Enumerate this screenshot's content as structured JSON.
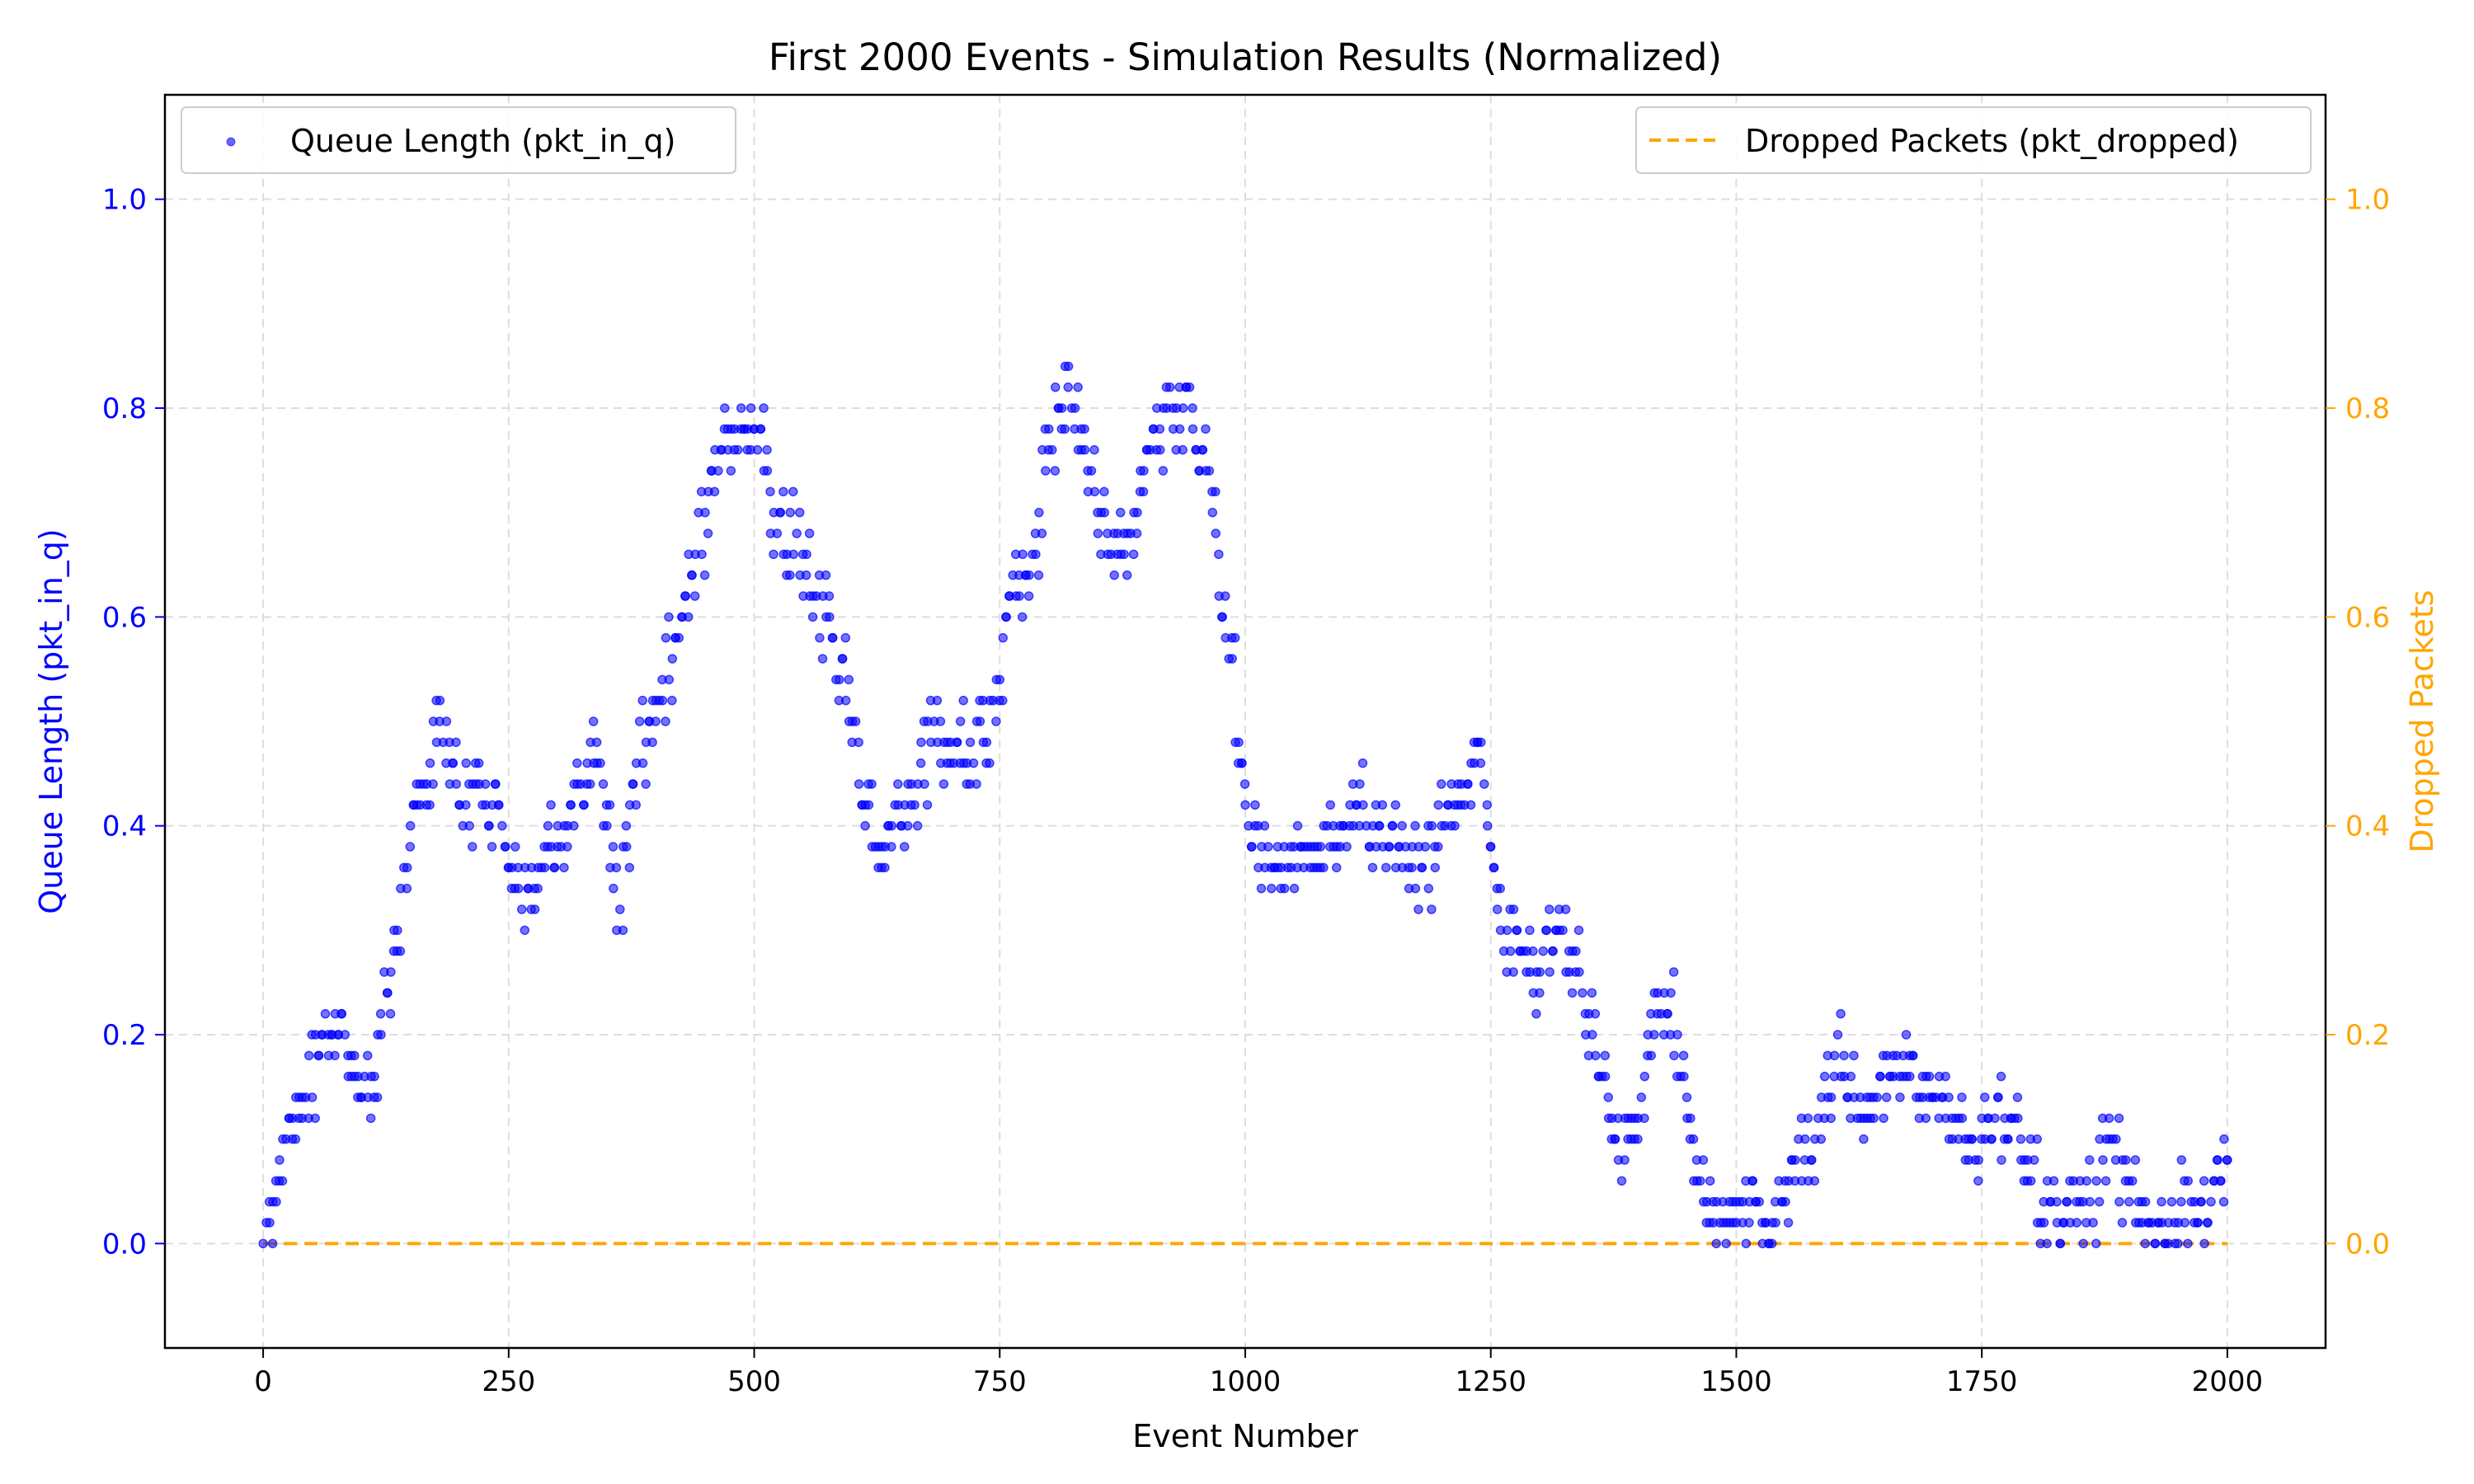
{
  "chart_data": {
    "type": "scatter",
    "title": "First 2000 Events - Simulation Results (Normalized)",
    "xlabel": "Event Number",
    "ylabel_left": "Queue Length (pkt_in_q)",
    "ylabel_right": "Dropped Packets",
    "xlim": [
      -100,
      2100
    ],
    "ylim": [
      -0.1,
      1.1
    ],
    "xticks": [
      0,
      250,
      500,
      750,
      1000,
      1250,
      1500,
      1750,
      2000
    ],
    "yticks": [
      0.0,
      0.2,
      0.4,
      0.6,
      0.8,
      1.0
    ],
    "grid": true,
    "colors": {
      "queue": "#0000ff",
      "dropped": "#ffa500"
    },
    "series": [
      {
        "name": "Queue Length (pkt_in_q)",
        "kind": "scatter",
        "axis": "left",
        "legend_position": "top-left",
        "x": [
          0,
          20,
          40,
          60,
          80,
          100,
          120,
          140,
          160,
          180,
          200,
          220,
          240,
          260,
          280,
          300,
          320,
          340,
          360,
          380,
          400,
          420,
          440,
          460,
          480,
          500,
          520,
          540,
          560,
          580,
          600,
          620,
          640,
          660,
          680,
          700,
          720,
          740,
          760,
          780,
          800,
          820,
          840,
          860,
          880,
          900,
          920,
          940,
          960,
          980,
          1000,
          1020,
          1040,
          1060,
          1080,
          1100,
          1120,
          1140,
          1160,
          1180,
          1200,
          1220,
          1240,
          1260,
          1280,
          1300,
          1320,
          1340,
          1360,
          1380,
          1400,
          1420,
          1440,
          1460,
          1480,
          1500,
          1520,
          1540,
          1560,
          1580,
          1600,
          1620,
          1640,
          1660,
          1680,
          1700,
          1720,
          1740,
          1760,
          1780,
          1800,
          1820,
          1840,
          1860,
          1880,
          1900,
          1920,
          1940,
          1960,
          1980,
          2000
        ],
        "y": [
          0.0,
          0.1,
          0.14,
          0.2,
          0.22,
          0.14,
          0.2,
          0.34,
          0.42,
          0.52,
          0.42,
          0.44,
          0.42,
          0.34,
          0.36,
          0.4,
          0.44,
          0.46,
          0.3,
          0.46,
          0.52,
          0.58,
          0.66,
          0.76,
          0.78,
          0.78,
          0.7,
          0.66,
          0.62,
          0.58,
          0.5,
          0.38,
          0.4,
          0.44,
          0.48,
          0.48,
          0.48,
          0.52,
          0.62,
          0.64,
          0.78,
          0.84,
          0.72,
          0.66,
          0.68,
          0.76,
          0.8,
          0.82,
          0.74,
          0.58,
          0.42,
          0.36,
          0.34,
          0.38,
          0.4,
          0.4,
          0.42,
          0.38,
          0.36,
          0.36,
          0.4,
          0.44,
          0.48,
          0.3,
          0.28,
          0.26,
          0.3,
          0.26,
          0.16,
          0.08,
          0.12,
          0.24,
          0.2,
          0.06,
          0.04,
          0.02,
          0.04,
          0.02,
          0.08,
          0.1,
          0.18,
          0.14,
          0.12,
          0.16,
          0.18,
          0.14,
          0.1,
          0.1,
          0.1,
          0.12,
          0.06,
          0.04,
          0.02,
          0.04,
          0.1,
          0.04,
          0.02,
          0.02,
          0.06,
          0.02,
          0.08
        ]
      },
      {
        "name": "Dropped Packets (pkt_dropped)",
        "kind": "dashed-line",
        "axis": "right",
        "legend_position": "top-right",
        "x": [
          0,
          2000
        ],
        "y": [
          0.0,
          0.0
        ]
      }
    ]
  }
}
